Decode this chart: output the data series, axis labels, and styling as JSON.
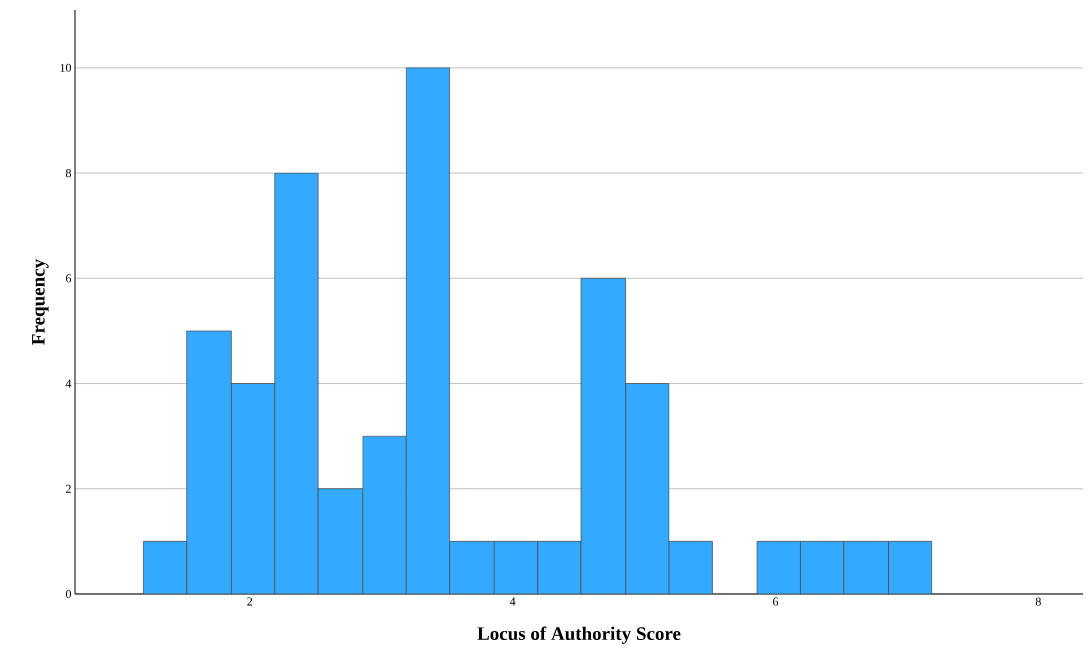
{
  "chart_data": {
    "type": "histogram",
    "xlabel": "Locus of Authority Score",
    "ylabel": "Frequency",
    "bins": [
      1.19,
      1.52,
      1.86,
      2.19,
      2.52,
      2.86,
      3.19,
      3.52,
      3.86,
      4.19,
      4.52,
      4.86,
      5.19,
      5.52,
      5.86,
      6.19,
      6.52,
      6.86,
      7.19
    ],
    "values": [
      1,
      5,
      4,
      8,
      2,
      3,
      10,
      1,
      1,
      1,
      6,
      4,
      1,
      0,
      1,
      1,
      1,
      1
    ],
    "color": "#33aaff",
    "xlim": [
      0.67,
      8.34
    ],
    "ylim": [
      0,
      11.1
    ],
    "xticks": [
      2,
      4,
      6,
      8
    ],
    "yticks": [
      0,
      2,
      4,
      6,
      8,
      10
    ],
    "grid": "y"
  }
}
